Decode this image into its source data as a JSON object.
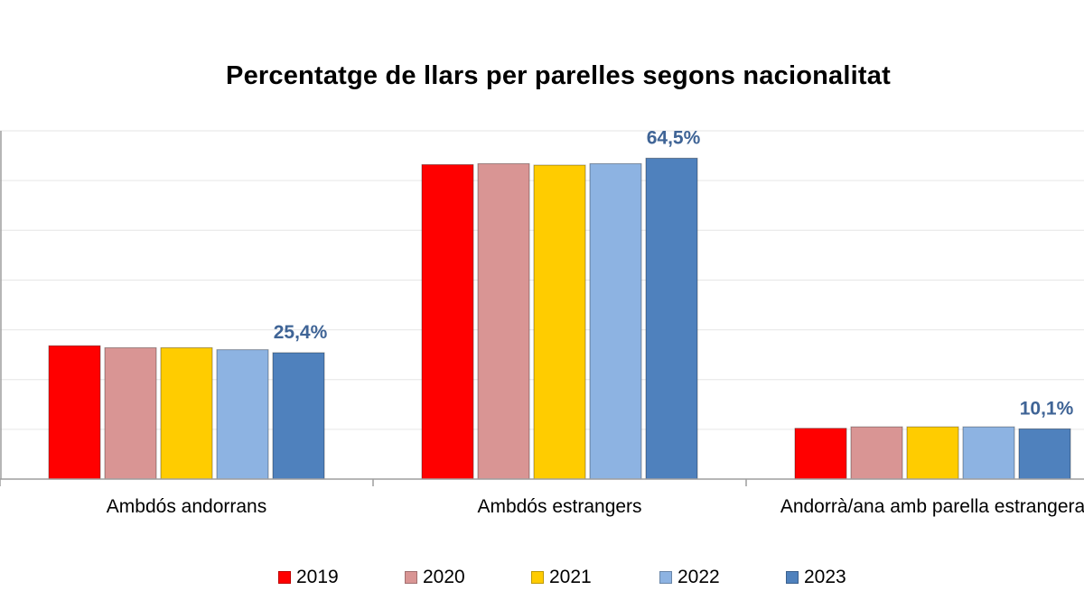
{
  "chart_data": {
    "type": "bar",
    "title": "Percentatge de llars per parelles segons nacionalitat",
    "xlabel": "",
    "ylabel": "",
    "ylim": [
      0,
      70
    ],
    "grid": true,
    "legend_position": "bottom",
    "categories": [
      "Ambdós andorrans",
      "Ambdós estrangers",
      "Andorrà/ana amb parella estrangera"
    ],
    "series": [
      {
        "name": "2019",
        "color": "#ff0000",
        "values": [
          26.8,
          63.2,
          10.2
        ]
      },
      {
        "name": "2020",
        "color": "#d99594",
        "values": [
          26.4,
          63.4,
          10.5
        ]
      },
      {
        "name": "2021",
        "color": "#ffcc00",
        "values": [
          26.4,
          63.1,
          10.5
        ]
      },
      {
        "name": "2022",
        "color": "#8db3e2",
        "values": [
          26.0,
          63.4,
          10.5
        ]
      },
      {
        "name": "2023",
        "color": "#4f81bd",
        "values": [
          25.4,
          64.5,
          10.1
        ]
      }
    ],
    "data_labels": [
      {
        "category_index": 0,
        "series_index": 4,
        "text": "25,4%"
      },
      {
        "category_index": 1,
        "series_index": 4,
        "text": "64,5%"
      },
      {
        "category_index": 2,
        "series_index": 4,
        "text": "10,1%"
      }
    ]
  }
}
